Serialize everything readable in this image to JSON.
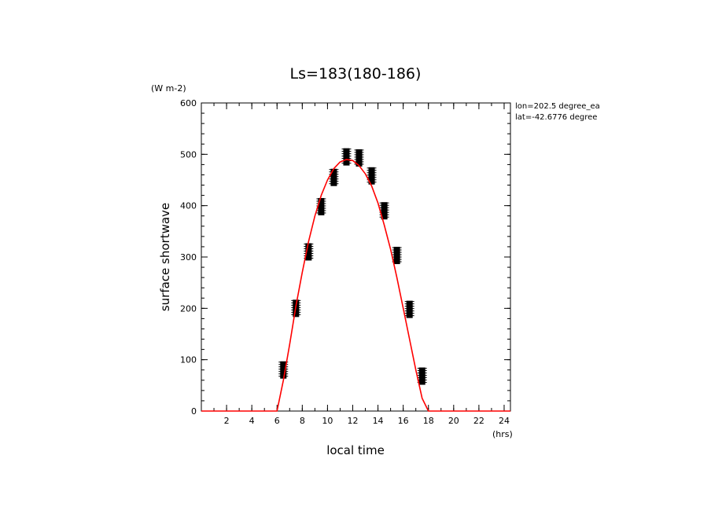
{
  "chart_data": {
    "type": "line",
    "title": "Ls=183(180-186)",
    "xlabel": "local time",
    "ylabel": "surface shortwave",
    "x_unit": "(hrs)",
    "y_unit": "(W m-2)",
    "annotations": [
      "lon=202.5 degree_ea",
      "lat=-42.6776 degree"
    ],
    "xlim": [
      0,
      24.5
    ],
    "ylim": [
      0,
      600
    ],
    "x_ticks": [
      2,
      4,
      6,
      8,
      10,
      12,
      14,
      16,
      18,
      20,
      22,
      24
    ],
    "y_ticks": [
      0,
      100,
      200,
      300,
      400,
      500,
      600
    ],
    "grid": false,
    "series": [
      {
        "kind": "line",
        "color": "#ff0000",
        "x": [
          0,
          5.5,
          6.0,
          6.5,
          7.0,
          7.5,
          8.0,
          8.5,
          9.0,
          9.5,
          10.0,
          10.5,
          11.0,
          11.5,
          12.0,
          12.5,
          13.0,
          13.5,
          14.0,
          14.5,
          15.0,
          15.5,
          16.0,
          16.5,
          17.0,
          17.5,
          18.0,
          18.5,
          24.5
        ],
        "y": [
          0,
          0,
          0,
          60,
          130,
          205,
          270,
          330,
          380,
          420,
          450,
          472,
          485,
          490,
          488,
          478,
          462,
          438,
          405,
          362,
          315,
          260,
          200,
          140,
          80,
          25,
          0,
          0,
          0
        ]
      },
      {
        "kind": "points",
        "color": "#000000",
        "x": [
          6.5,
          7.5,
          8.5,
          9.5,
          10.5,
          11.5,
          12.5,
          13.5,
          14.5,
          15.5,
          16.5,
          17.5
        ],
        "y": [
          80,
          200,
          310,
          398,
          455,
          495,
          493,
          458,
          390,
          303,
          198,
          68
        ]
      }
    ]
  }
}
